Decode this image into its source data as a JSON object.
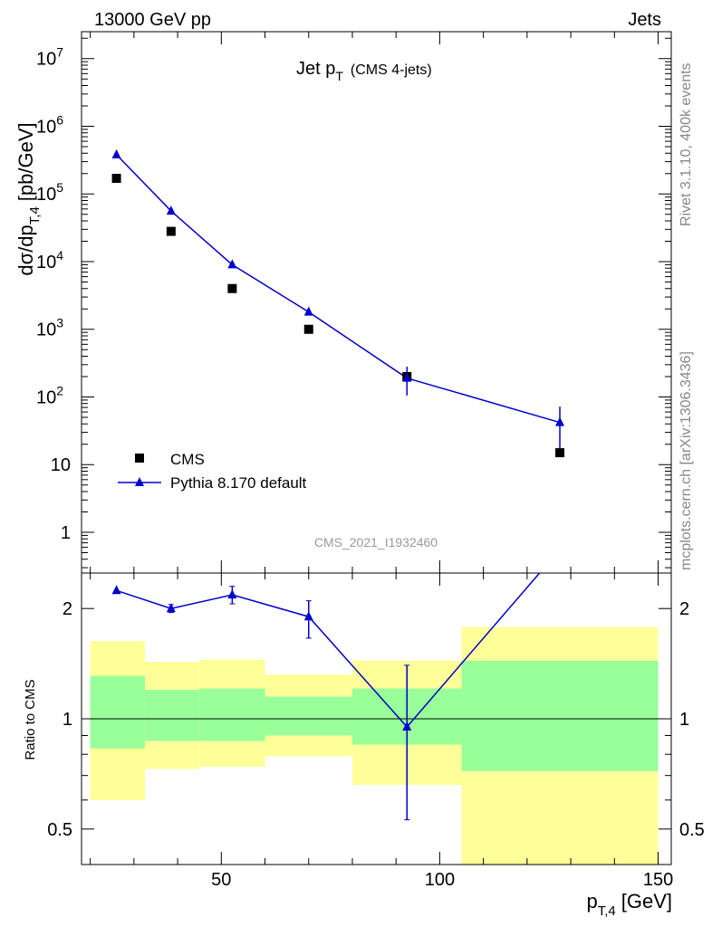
{
  "header": {
    "left": "13000 GeV pp",
    "right": "Jets"
  },
  "side_labels": {
    "rivet": "Rivet 3.1.10,  400k events",
    "mcplots": "mcplots.cern.ch [arXiv:1306.3436]"
  },
  "main_panel": {
    "title": "Jet p",
    "title_sub": "T",
    "title_note": "(CMS 4-jets)",
    "ylabel": "dσ/dp",
    "ylabel_sub": "T,4",
    "ylabel_unit": "[pb/GeV]",
    "watermark": "CMS_2021_I1932460",
    "y_ticks": [
      {
        "value": 1,
        "base": "1",
        "exp": ""
      },
      {
        "value": 10,
        "base": "10",
        "exp": ""
      },
      {
        "value": 100,
        "base": "10",
        "exp": "2"
      },
      {
        "value": 1000,
        "base": "10",
        "exp": "3"
      },
      {
        "value": 10000,
        "base": "10",
        "exp": "4"
      },
      {
        "value": 100000,
        "base": "10",
        "exp": "5"
      },
      {
        "value": 1000000,
        "base": "10",
        "exp": "6"
      },
      {
        "value": 10000000,
        "base": "10",
        "exp": "7"
      }
    ],
    "legend": [
      {
        "label": "CMS",
        "marker": "square",
        "color": "#000000"
      },
      {
        "label": "Pythia 8.170 default",
        "marker": "triangle",
        "color": "#0000cc"
      }
    ]
  },
  "ratio_panel": {
    "ylabel": "Ratio to CMS",
    "y_ticks": [
      {
        "value": 0.5,
        "label": "0.5"
      },
      {
        "value": 1,
        "label": "1"
      },
      {
        "value": 2,
        "label": "2"
      }
    ]
  },
  "x_axis": {
    "label": "p",
    "label_sub": "T,4",
    "label_unit": "[GeV]",
    "ticks": [
      {
        "value": 50,
        "label": "50"
      },
      {
        "value": 100,
        "label": "100"
      },
      {
        "value": 150,
        "label": "150"
      }
    ]
  },
  "chart_data": {
    "type": "scatter",
    "x_scale": "linear",
    "xlim": [
      18,
      153
    ],
    "main": {
      "y_scale": "log",
      "ylim": [
        0.25,
        25000000
      ],
      "series": [
        {
          "name": "CMS",
          "color": "#000000",
          "points": [
            {
              "x": 26,
              "y": 170000
            },
            {
              "x": 38.5,
              "y": 28000
            },
            {
              "x": 52.5,
              "y": 4000
            },
            {
              "x": 70,
              "y": 1000
            },
            {
              "x": 92.5,
              "y": 200
            },
            {
              "x": 127.5,
              "y": 15
            }
          ]
        },
        {
          "name": "Pythia 8.170 default",
          "color": "#0000cc",
          "points": [
            {
              "x": 26,
              "y": 380000,
              "ylo": 380000,
              "yhi": 380000
            },
            {
              "x": 38.5,
              "y": 56000,
              "ylo": 53000,
              "yhi": 59000
            },
            {
              "x": 52.5,
              "y": 9000,
              "ylo": 8500,
              "yhi": 9500
            },
            {
              "x": 70,
              "y": 1800,
              "ylo": 1600,
              "yhi": 2100
            },
            {
              "x": 92.5,
              "y": 190,
              "ylo": 105,
              "yhi": 280
            },
            {
              "x": 127.5,
              "y": 42,
              "ylo": 13,
              "yhi": 72
            }
          ]
        }
      ]
    },
    "ratio": {
      "y_scale": "log",
      "ylim": [
        0.4,
        2.5
      ],
      "reference_line": 1,
      "bands": [
        {
          "xlo": 20,
          "xhi": 32.5,
          "yellow": [
            0.6,
            1.63
          ],
          "green": [
            0.83,
            1.31
          ]
        },
        {
          "xlo": 32.5,
          "xhi": 45,
          "yellow": [
            0.73,
            1.43
          ],
          "green": [
            0.87,
            1.2
          ]
        },
        {
          "xlo": 45,
          "xhi": 60,
          "yellow": [
            0.74,
            1.45
          ],
          "green": [
            0.87,
            1.21
          ]
        },
        {
          "xlo": 60,
          "xhi": 80,
          "yellow": [
            0.79,
            1.32
          ],
          "green": [
            0.9,
            1.15
          ]
        },
        {
          "xlo": 80,
          "xhi": 105,
          "yellow": [
            0.66,
            1.44
          ],
          "green": [
            0.85,
            1.21
          ]
        },
        {
          "xlo": 105,
          "xhi": 150,
          "yellow": [
            0.4,
            1.78
          ],
          "green": [
            0.72,
            1.44
          ]
        }
      ],
      "series": [
        {
          "name": "Pythia 8.170 default",
          "color": "#0000cc",
          "points": [
            {
              "x": 26,
              "y": 2.24,
              "ylo": 2.24,
              "yhi": 2.24
            },
            {
              "x": 38.5,
              "y": 2.0,
              "ylo": 1.95,
              "yhi": 2.05
            },
            {
              "x": 52.5,
              "y": 2.18,
              "ylo": 2.06,
              "yhi": 2.3
            },
            {
              "x": 70,
              "y": 1.9,
              "ylo": 1.66,
              "yhi": 2.1
            },
            {
              "x": 92.5,
              "y": 0.95,
              "ylo": 0.53,
              "yhi": 1.4
            },
            {
              "x": 127.5,
              "y": 2.9
            }
          ]
        }
      ]
    }
  }
}
